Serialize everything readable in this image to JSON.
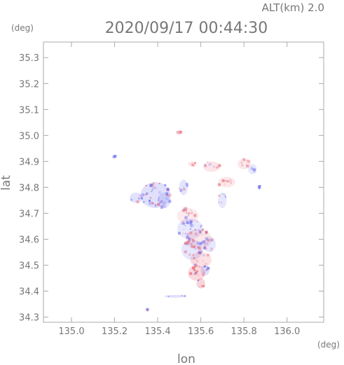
{
  "header": {
    "altitude_label": "ALT(km)  2.0",
    "timestamp": "2020/09/17 00:44:30"
  },
  "chart_data": {
    "type": "heatmap",
    "title": "2020/09/17 00:44:30",
    "xlabel": "lon",
    "ylabel": "lat",
    "x_unit": "(deg)",
    "y_unit": "(deg)",
    "xlim": [
      134.87,
      136.17
    ],
    "ylim": [
      34.28,
      35.36
    ],
    "x_ticks": [
      135.0,
      135.2,
      135.4,
      135.6,
      135.8,
      136.0
    ],
    "x_tick_labels": [
      "135.0",
      "135.2",
      "135.4",
      "135.6",
      "135.8",
      "136.0"
    ],
    "y_ticks": [
      34.3,
      34.4,
      34.5,
      34.6,
      34.7,
      34.8,
      34.9,
      35.0,
      35.1,
      35.2,
      35.3
    ],
    "y_tick_labels": [
      "34.3",
      "34.4",
      "34.5",
      "34.6",
      "34.7",
      "34.8",
      "34.9",
      "35.0",
      "35.1",
      "35.2",
      "35.3"
    ],
    "grid": false,
    "colors": {
      "positive": "#e86070",
      "negative": "#6a6af0",
      "axis": "#aaaaaa",
      "text": "#777777"
    },
    "patches": [
      {
        "lon": 135.39,
        "lat": 34.77,
        "rlon": 0.07,
        "rlat": 0.05,
        "value": -0.5
      },
      {
        "lon": 135.43,
        "lat": 34.75,
        "rlon": 0.03,
        "rlat": 0.03,
        "value": -0.4
      },
      {
        "lon": 135.3,
        "lat": 34.76,
        "rlon": 0.03,
        "rlat": 0.02,
        "value": -0.45
      },
      {
        "lon": 135.52,
        "lat": 34.8,
        "rlon": 0.02,
        "rlat": 0.03,
        "value": -0.4
      },
      {
        "lon": 135.54,
        "lat": 34.69,
        "rlon": 0.05,
        "rlat": 0.03,
        "value": 0.2
      },
      {
        "lon": 135.55,
        "lat": 34.64,
        "rlon": 0.06,
        "rlat": 0.04,
        "value": -0.3
      },
      {
        "lon": 135.59,
        "lat": 34.6,
        "rlon": 0.06,
        "rlat": 0.04,
        "value": 0.3
      },
      {
        "lon": 135.56,
        "lat": 34.56,
        "rlon": 0.05,
        "rlat": 0.04,
        "value": -0.35
      },
      {
        "lon": 135.6,
        "lat": 34.52,
        "rlon": 0.05,
        "rlat": 0.03,
        "value": 0.45
      },
      {
        "lon": 135.58,
        "lat": 34.47,
        "rlon": 0.04,
        "rlat": 0.03,
        "value": 0.6
      },
      {
        "lon": 135.6,
        "lat": 34.43,
        "rlon": 0.02,
        "rlat": 0.02,
        "value": 0.75
      },
      {
        "lon": 135.62,
        "lat": 34.48,
        "rlon": 0.02,
        "rlat": 0.02,
        "value": -0.5
      },
      {
        "lon": 135.64,
        "lat": 34.58,
        "rlon": 0.03,
        "rlat": 0.03,
        "value": -0.3
      },
      {
        "lon": 135.65,
        "lat": 34.88,
        "rlon": 0.04,
        "rlat": 0.02,
        "value": 0.3
      },
      {
        "lon": 135.72,
        "lat": 34.82,
        "rlon": 0.04,
        "rlat": 0.02,
        "value": 0.25
      },
      {
        "lon": 135.7,
        "lat": 34.75,
        "rlon": 0.02,
        "rlat": 0.03,
        "value": -0.35
      },
      {
        "lon": 135.8,
        "lat": 34.89,
        "rlon": 0.03,
        "rlat": 0.02,
        "value": 0.25
      },
      {
        "lon": 135.84,
        "lat": 34.87,
        "rlon": 0.02,
        "rlat": 0.02,
        "value": -0.3
      },
      {
        "lon": 135.56,
        "lat": 34.89,
        "rlon": 0.02,
        "rlat": 0.01,
        "value": 0.25
      },
      {
        "lon": 135.48,
        "lat": 34.38,
        "rlon": 0.05,
        "rlat": 0.005,
        "value": -0.5
      },
      {
        "lon": 135.5,
        "lat": 35.01,
        "rlon": 0.01,
        "rlat": 0.01,
        "value": 0.3
      },
      {
        "lon": 135.35,
        "lat": 34.33,
        "rlon": 0.005,
        "rlat": 0.005,
        "value": -0.5
      },
      {
        "lon": 135.87,
        "lat": 34.8,
        "rlon": 0.005,
        "rlat": 0.005,
        "value": -0.6
      },
      {
        "lon": 135.2,
        "lat": 34.92,
        "rlon": 0.005,
        "rlat": 0.005,
        "value": -0.5
      }
    ]
  }
}
